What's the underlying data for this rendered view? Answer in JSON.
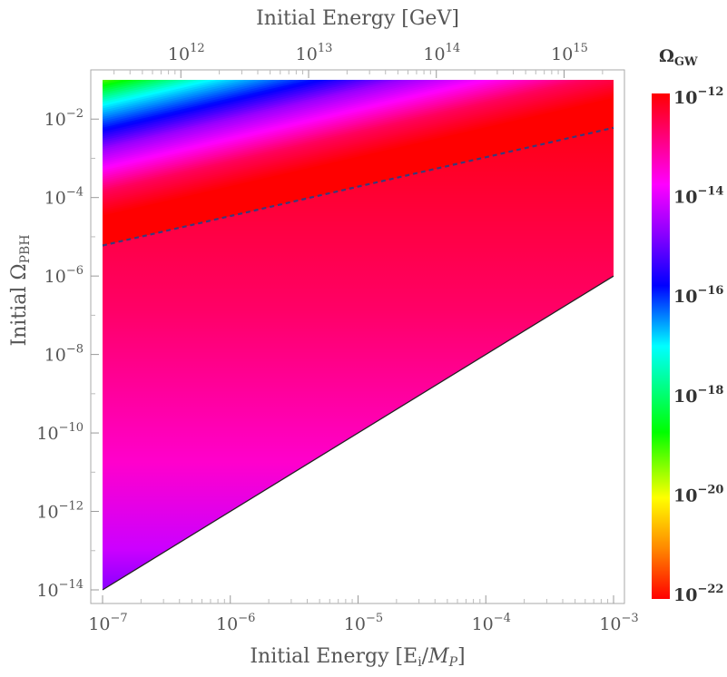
{
  "chart_data": {
    "type": "heatmap",
    "title": "",
    "xlabel": "Initial Energy [E",
    "xlabel_sub": "i",
    "xlabel_mid": "/",
    "xlabel_m": "M",
    "xlabel_msub": "P",
    "xlabel_end": "]",
    "x_scale": "log",
    "xlim": [
      1e-07,
      0.001
    ],
    "x_ticks": [
      {
        "exp": "−7",
        "value": 1e-07
      },
      {
        "exp": "−6",
        "value": 1e-06
      },
      {
        "exp": "−5",
        "value": 1e-05
      },
      {
        "exp": "−4",
        "value": 0.0001
      },
      {
        "exp": "−3",
        "value": 0.001
      }
    ],
    "x2label": "Initial Energy [GeV]",
    "x2_ticks": [
      {
        "exp": "12",
        "value_gev": 1000000000000.0,
        "value_x": 4.1e-07
      },
      {
        "exp": "13",
        "value_gev": 10000000000000.0,
        "value_x": 4.1e-06
      },
      {
        "exp": "14",
        "value_gev": 100000000000000.0,
        "value_x": 4.1e-05
      },
      {
        "exp": "15",
        "value_gev": 1000000000000000.0,
        "value_x": 0.00041
      }
    ],
    "ylabel": "Initial Ω",
    "ylabel_sub": "PBH",
    "y_scale": "log",
    "ylim": [
      1e-14,
      0.1
    ],
    "y_ticks": [
      {
        "exp": "−2",
        "value": 0.01
      },
      {
        "exp": "−4",
        "value": 0.0001
      },
      {
        "exp": "−6",
        "value": 1e-06
      },
      {
        "exp": "−8",
        "value": 1e-08
      },
      {
        "exp": "−10",
        "value": 1e-10
      },
      {
        "exp": "−12",
        "value": 1e-12
      },
      {
        "exp": "−14",
        "value": 1e-14
      }
    ],
    "colorbar": {
      "label": "Ω",
      "label_sub": "GW",
      "range": [
        1e-22,
        1e-12
      ],
      "colormap": "rainbow-reversed",
      "ticks": [
        {
          "exp": "−12",
          "value": 1e-12
        },
        {
          "exp": "−14",
          "value": 1e-14
        },
        {
          "exp": "−16",
          "value": 1e-16
        },
        {
          "exp": "−18",
          "value": 1e-18
        },
        {
          "exp": "−20",
          "value": 1e-20
        },
        {
          "exp": "−22",
          "value": 1e-22
        }
      ]
    },
    "lower_boundary_line": {
      "style": "solid",
      "points": [
        [
          1e-07,
          1e-14
        ],
        [
          0.001,
          1e-06
        ]
      ]
    },
    "dashed_line": {
      "style": "dashed",
      "points": [
        [
          1e-07,
          6e-06
        ],
        [
          0.001,
          0.006
        ]
      ]
    },
    "color_bands_at_left_edge": [
      {
        "y": 0.1,
        "color_name": "red-orange"
      },
      {
        "y": 0.01,
        "color_name": "green"
      },
      {
        "y": 0.001,
        "color_name": "cyan"
      },
      {
        "y": 0.0001,
        "color_name": "blue"
      },
      {
        "y": 3e-05,
        "color_name": "magenta"
      },
      {
        "y": 5e-06,
        "color_name": "red"
      }
    ],
    "colors": {
      "red": "#ff0000",
      "orange": "#ff8c00",
      "yellow": "#ffff00",
      "green": "#00ff00",
      "cyan": "#00ffff",
      "blue": "#0000ff",
      "purple": "#8b00ff",
      "magenta": "#ff00ff",
      "pink": "#ff0066",
      "dashed_line": "#3a3a7a"
    }
  }
}
